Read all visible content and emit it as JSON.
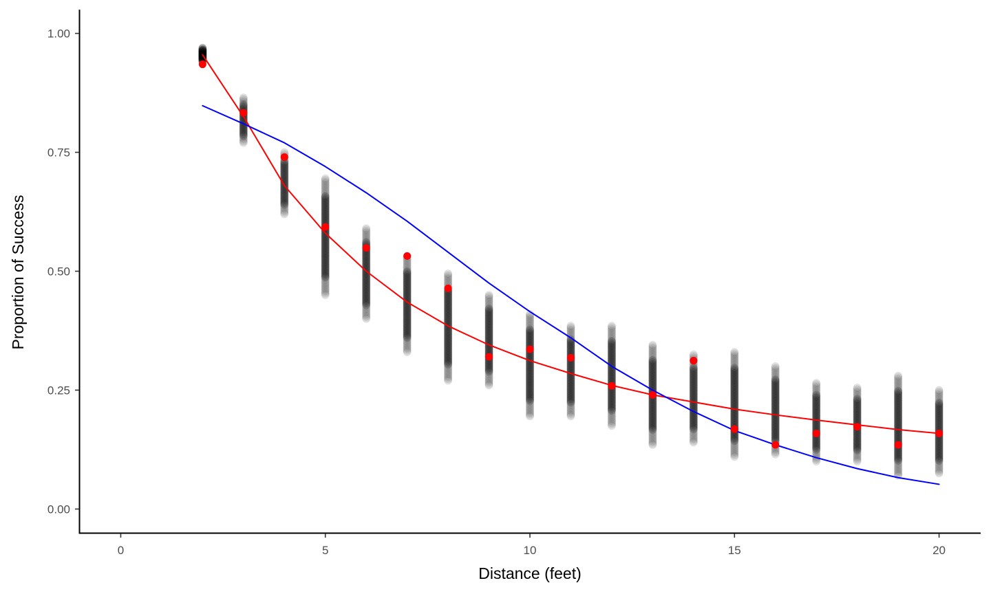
{
  "chart_data": {
    "type": "scatter",
    "title": "",
    "xlabel": "Distance (feet)",
    "ylabel": "Proportion of Success",
    "xlim": [
      -1,
      21
    ],
    "ylim": [
      -0.05,
      1.05
    ],
    "x_ticks": [
      0,
      5,
      10,
      15,
      20
    ],
    "x_tick_labels": [
      "0",
      "5",
      "10",
      "15",
      "20"
    ],
    "y_ticks": [
      0,
      0.25,
      0.5,
      0.75,
      1
    ],
    "y_tick_labels": [
      "0.00",
      "0.25",
      "0.50",
      "0.75",
      "1.00"
    ],
    "grid": false,
    "legend": "none",
    "simulated_ranges": [
      {
        "x": 2,
        "min": 0.94,
        "max": 0.97
      },
      {
        "x": 3,
        "min": 0.77,
        "max": 0.865
      },
      {
        "x": 4,
        "min": 0.62,
        "max": 0.75
      },
      {
        "x": 5,
        "min": 0.45,
        "max": 0.695
      },
      {
        "x": 6,
        "min": 0.4,
        "max": 0.59
      },
      {
        "x": 7,
        "min": 0.33,
        "max": 0.53
      },
      {
        "x": 8,
        "min": 0.27,
        "max": 0.495
      },
      {
        "x": 9,
        "min": 0.26,
        "max": 0.45
      },
      {
        "x": 10,
        "min": 0.195,
        "max": 0.41
      },
      {
        "x": 11,
        "min": 0.195,
        "max": 0.385
      },
      {
        "x": 12,
        "min": 0.175,
        "max": 0.385
      },
      {
        "x": 13,
        "min": 0.135,
        "max": 0.345
      },
      {
        "x": 14,
        "min": 0.14,
        "max": 0.325
      },
      {
        "x": 15,
        "min": 0.11,
        "max": 0.33
      },
      {
        "x": 16,
        "min": 0.115,
        "max": 0.3
      },
      {
        "x": 17,
        "min": 0.1,
        "max": 0.265
      },
      {
        "x": 18,
        "min": 0.1,
        "max": 0.255
      },
      {
        "x": 19,
        "min": 0.07,
        "max": 0.28
      },
      {
        "x": 20,
        "min": 0.075,
        "max": 0.25
      }
    ],
    "series": [
      {
        "type": "scatter",
        "color": "#ff0000",
        "x": [
          2,
          3,
          4,
          5,
          6,
          7,
          8,
          9,
          10,
          11,
          12,
          13,
          14,
          15,
          16,
          17,
          18,
          19,
          20
        ],
        "y": [
          0.935,
          0.833,
          0.74,
          0.593,
          0.549,
          0.532,
          0.464,
          0.32,
          0.336,
          0.318,
          0.259,
          0.24,
          0.312,
          0.168,
          0.135,
          0.159,
          0.173,
          0.135,
          0.159
        ]
      },
      {
        "type": "line",
        "color": "#ff0000",
        "x": [
          2,
          3,
          4,
          5,
          6,
          7,
          8,
          9,
          10,
          11,
          12,
          13,
          14,
          15,
          16,
          17,
          18,
          19,
          20
        ],
        "y": [
          0.955,
          0.825,
          0.68,
          0.58,
          0.5,
          0.435,
          0.385,
          0.345,
          0.312,
          0.285,
          0.26,
          0.24,
          0.225,
          0.21,
          0.198,
          0.187,
          0.177,
          0.167,
          0.159
        ]
      },
      {
        "type": "line",
        "color": "#0000ff",
        "x": [
          2,
          3,
          4,
          5,
          6,
          7,
          8,
          9,
          10,
          11,
          12,
          13,
          14,
          15,
          16,
          17,
          18,
          19,
          20
        ],
        "y": [
          0.848,
          0.81,
          0.77,
          0.72,
          0.665,
          0.605,
          0.54,
          0.475,
          0.415,
          0.36,
          0.3,
          0.25,
          0.205,
          0.165,
          0.135,
          0.108,
          0.085,
          0.066,
          0.052
        ]
      }
    ]
  }
}
